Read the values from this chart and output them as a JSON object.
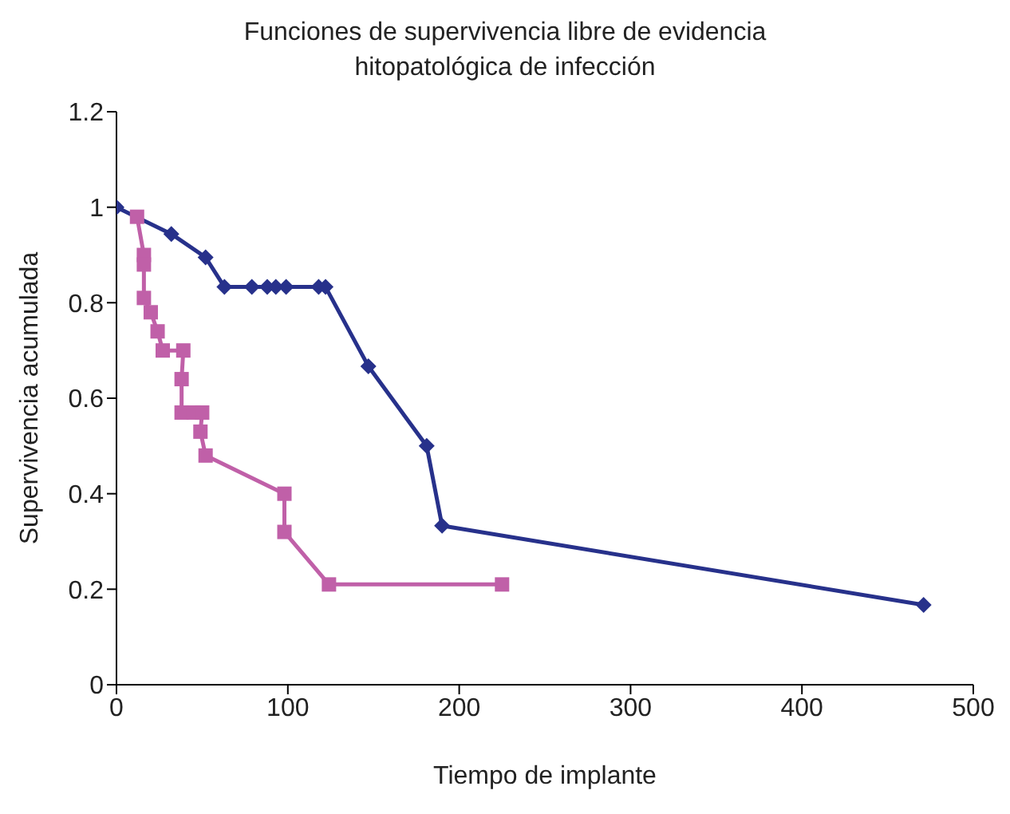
{
  "chart_data": {
    "type": "line",
    "title": "Funciones de supervivencia libre de evidencia hitopatológica de infección",
    "xlabel": "Tiempo de implante",
    "ylabel": "Supervivencia acumulada",
    "xlim": [
      0,
      500
    ],
    "xticks": [
      0,
      100,
      200,
      300,
      400,
      500
    ],
    "ylim": [
      0,
      1.2
    ],
    "yticks": [
      0,
      0.2,
      0.4,
      0.6,
      0.8,
      1,
      1.2
    ],
    "grid": false,
    "legend": false,
    "series": [
      {
        "color": "#27318b",
        "marker": "diamond",
        "x": [
          0,
          32,
          52,
          63,
          79,
          88,
          93,
          99,
          118,
          122,
          147,
          181,
          190,
          471
        ],
        "values": [
          1,
          0.944,
          0.895,
          0.833,
          0.833,
          0.833,
          0.833,
          0.833,
          0.833,
          0.833,
          0.667,
          0.5,
          0.333,
          0.167
        ]
      },
      {
        "color": "#c060a8",
        "marker": "square",
        "x": [
          12,
          16,
          16,
          16,
          20,
          24,
          27,
          39,
          38,
          38,
          45,
          50,
          49,
          52,
          98,
          98,
          124,
          225
        ],
        "values": [
          0.98,
          0.9,
          0.88,
          0.81,
          0.78,
          0.74,
          0.7,
          0.7,
          0.64,
          0.57,
          0.57,
          0.57,
          0.53,
          0.48,
          0.4,
          0.32,
          0.21,
          0.21
        ]
      }
    ]
  }
}
